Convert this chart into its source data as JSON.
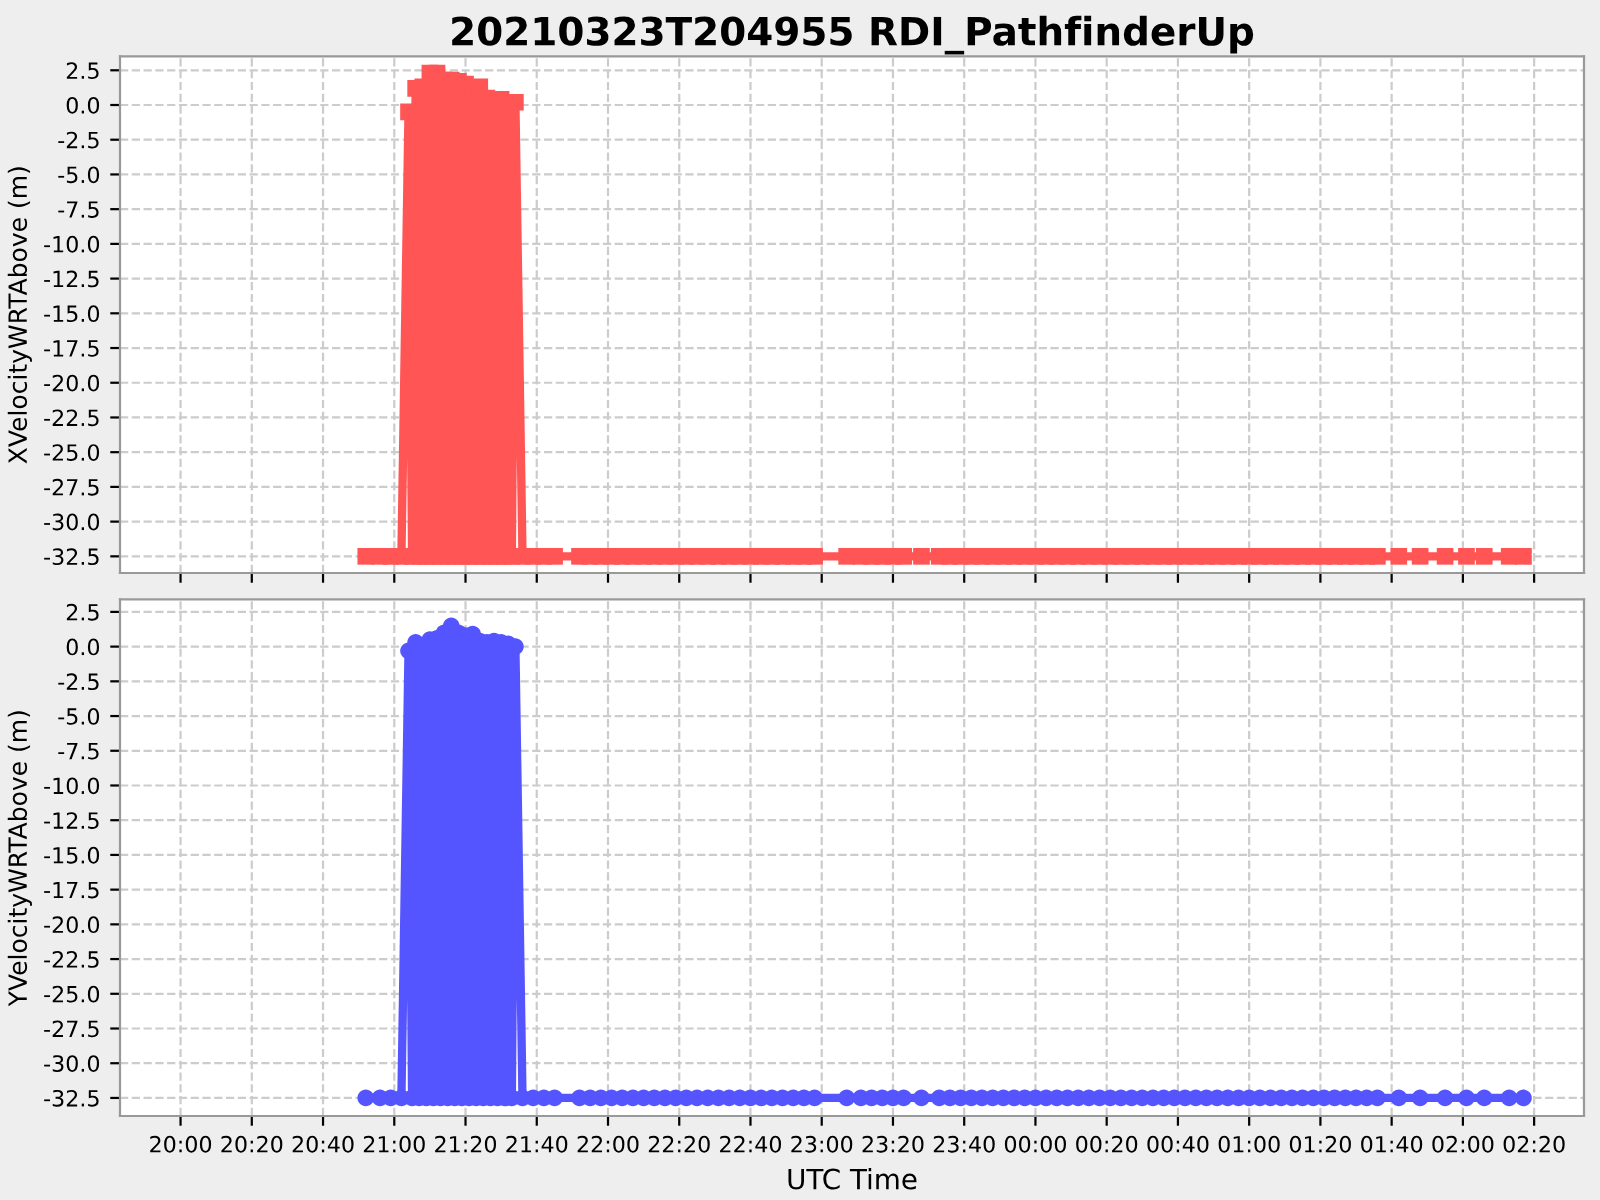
{
  "chart_data": [
    {
      "type": "line",
      "title": "20210323T204955 RDI_PathfinderUp",
      "ylabel": "XVelocityWRTAbove (m)",
      "tick_labels": "y",
      "grid": true,
      "marker": "square",
      "line_style": "solid",
      "xlim": [
        "2021-03-23T19:43",
        "2021-03-24T02:34"
      ],
      "ylim": [
        -33.7,
        3.5
      ],
      "xticks": [
        {
          "value": "2021-03-23T20:00",
          "label": null
        },
        {
          "value": "2021-03-23T20:20",
          "label": null
        },
        {
          "value": "2021-03-23T20:40",
          "label": null
        },
        {
          "value": "2021-03-23T21:00",
          "label": null
        },
        {
          "value": "2021-03-23T21:20",
          "label": null
        },
        {
          "value": "2021-03-23T21:40",
          "label": null
        },
        {
          "value": "2021-03-23T22:00",
          "label": null
        },
        {
          "value": "2021-03-23T22:20",
          "label": null
        },
        {
          "value": "2021-03-23T22:40",
          "label": null
        },
        {
          "value": "2021-03-23T23:00",
          "label": null
        },
        {
          "value": "2021-03-23T23:20",
          "label": null
        },
        {
          "value": "2021-03-23T23:40",
          "label": null
        },
        {
          "value": "2021-03-24T00:00",
          "label": null
        },
        {
          "value": "2021-03-24T00:20",
          "label": null
        },
        {
          "value": "2021-03-24T00:40",
          "label": null
        },
        {
          "value": "2021-03-24T01:00",
          "label": null
        },
        {
          "value": "2021-03-24T01:20",
          "label": null
        },
        {
          "value": "2021-03-24T01:40",
          "label": null
        },
        {
          "value": "2021-03-24T02:00",
          "label": null
        },
        {
          "value": "2021-03-24T02:20",
          "label": null
        }
      ],
      "yticks": [
        2.5,
        {
          "value": 0,
          "label": "0.0"
        },
        -2.5,
        {
          "value": -5,
          "label": "-5.0"
        },
        -7.5,
        {
          "value": -10,
          "label": "-10.0"
        },
        -12.5,
        {
          "value": -15,
          "label": "-15.0"
        },
        -17.5,
        {
          "value": -20,
          "label": "-20.0"
        },
        -22.5,
        {
          "value": -25,
          "label": "-25.0"
        },
        -27.5,
        {
          "value": -30,
          "label": "-30.0"
        },
        -32.5
      ],
      "x": [
        "2021-03-23T20:52",
        "2021-03-23T20:56",
        "2021-03-23T20:59",
        "2021-03-23T21:02",
        "2021-03-23T21:04",
        "2021-03-23T21:05",
        "2021-03-23T21:06",
        "2021-03-23T21:07",
        "2021-03-23T21:08",
        "2021-03-23T21:09",
        "2021-03-23T21:10",
        "2021-03-23T21:11",
        "2021-03-23T21:12",
        "2021-03-23T21:13",
        "2021-03-23T21:14",
        "2021-03-23T21:15",
        "2021-03-23T21:16",
        "2021-03-23T21:17",
        "2021-03-23T21:18",
        "2021-03-23T21:19",
        "2021-03-23T21:20",
        "2021-03-23T21:21",
        "2021-03-23T21:22",
        "2021-03-23T21:23",
        "2021-03-23T21:24",
        "2021-03-23T21:25",
        "2021-03-23T21:26",
        "2021-03-23T21:27",
        "2021-03-23T21:28",
        "2021-03-23T21:29",
        "2021-03-23T21:30",
        "2021-03-23T21:31",
        "2021-03-23T21:32",
        "2021-03-23T21:33",
        "2021-03-23T21:34",
        "2021-03-23T21:36",
        "2021-03-23T21:39",
        "2021-03-23T21:42",
        "2021-03-23T21:45",
        "2021-03-23T21:52",
        "2021-03-23T21:55",
        "2021-03-23T21:58",
        "2021-03-23T22:01",
        "2021-03-23T22:04",
        "2021-03-23T22:07",
        "2021-03-23T22:10",
        "2021-03-23T22:13",
        "2021-03-23T22:16",
        "2021-03-23T22:19",
        "2021-03-23T22:22",
        "2021-03-23T22:25",
        "2021-03-23T22:28",
        "2021-03-23T22:31",
        "2021-03-23T22:34",
        "2021-03-23T22:37",
        "2021-03-23T22:40",
        "2021-03-23T22:43",
        "2021-03-23T22:46",
        "2021-03-23T22:49",
        "2021-03-23T22:52",
        "2021-03-23T22:55",
        "2021-03-23T22:58",
        "2021-03-23T23:07",
        "2021-03-23T23:11",
        "2021-03-23T23:14",
        "2021-03-23T23:17",
        "2021-03-23T23:20",
        "2021-03-23T23:23",
        "2021-03-23T23:28",
        "2021-03-23T23:33",
        "2021-03-23T23:36",
        "2021-03-23T23:39",
        "2021-03-23T23:42",
        "2021-03-23T23:45",
        "2021-03-23T23:48",
        "2021-03-23T23:51",
        "2021-03-23T23:54",
        "2021-03-23T23:57",
        "2021-03-24T00:00",
        "2021-03-24T00:03",
        "2021-03-24T00:06",
        "2021-03-24T00:09",
        "2021-03-24T00:12",
        "2021-03-24T00:15",
        "2021-03-24T00:18",
        "2021-03-24T00:21",
        "2021-03-24T00:24",
        "2021-03-24T00:27",
        "2021-03-24T00:30",
        "2021-03-24T00:33",
        "2021-03-24T00:36",
        "2021-03-24T00:39",
        "2021-03-24T00:42",
        "2021-03-24T00:45",
        "2021-03-24T00:48",
        "2021-03-24T00:51",
        "2021-03-24T00:54",
        "2021-03-24T00:57",
        "2021-03-24T01:00",
        "2021-03-24T01:03",
        "2021-03-24T01:06",
        "2021-03-24T01:09",
        "2021-03-24T01:12",
        "2021-03-24T01:15",
        "2021-03-24T01:18",
        "2021-03-24T01:21",
        "2021-03-24T01:24",
        "2021-03-24T01:27",
        "2021-03-24T01:30",
        "2021-03-24T01:33",
        "2021-03-24T01:36",
        "2021-03-24T01:42",
        "2021-03-24T01:48",
        "2021-03-24T01:55",
        "2021-03-24T02:01",
        "2021-03-24T02:06",
        "2021-03-24T02:13",
        "2021-03-24T02:17"
      ],
      "series": [
        {
          "color": "#ff5555",
          "values": [
            -32.5,
            -32.5,
            -32.5,
            -32.5,
            -0.5,
            -32.5,
            1.2,
            -32.5,
            1.3,
            -32.5,
            2.3,
            -32.5,
            2.3,
            -32.5,
            1.8,
            -32.5,
            1.8,
            -32.5,
            1.7,
            -32.5,
            1.5,
            -32.5,
            0.8,
            -32.5,
            1.3,
            -32.5,
            0.5,
            -32.5,
            0.4,
            -32.5,
            0.4,
            -32.5,
            0.2,
            -32.5,
            0.2,
            -32.5,
            -32.5,
            -32.5,
            -32.5,
            -32.5,
            -32.5,
            -32.5,
            -32.5,
            -32.5,
            -32.5,
            -32.5,
            -32.5,
            -32.5,
            -32.5,
            -32.5,
            -32.5,
            -32.5,
            -32.5,
            -32.5,
            -32.5,
            -32.5,
            -32.5,
            -32.5,
            -32.5,
            -32.5,
            -32.5,
            -32.5,
            -32.5,
            -32.5,
            -32.5,
            -32.5,
            -32.5,
            -32.5,
            -32.5,
            -32.5,
            -32.5,
            -32.5,
            -32.5,
            -32.5,
            -32.5,
            -32.5,
            -32.5,
            -32.5,
            -32.5,
            -32.5,
            -32.5,
            -32.5,
            -32.5,
            -32.5,
            -32.5,
            -32.5,
            -32.5,
            -32.5,
            -32.5,
            -32.5,
            -32.5,
            -32.5,
            -32.5,
            -32.5,
            -32.5,
            -32.5,
            -32.5,
            -32.5,
            -32.5,
            -32.5,
            -32.5,
            -32.5,
            -32.5,
            -32.5,
            -32.5,
            -32.5,
            -32.5,
            -32.5,
            -32.5,
            -32.5,
            -32.5,
            -32.5,
            -32.5,
            -32.5,
            -32.5,
            -32.5,
            -32.5,
            -32.5
          ]
        }
      ]
    },
    {
      "type": "line",
      "xlabel": "UTC Time",
      "ylabel": "YVelocityWRTAbove (m)",
      "grid": true,
      "marker": "circle",
      "line_style": "solid",
      "xlim": [
        "2021-03-23T19:43",
        "2021-03-24T02:34"
      ],
      "ylim": [
        -33.8,
        3.4
      ],
      "xticks": [
        {
          "value": "2021-03-23T20:00",
          "label": "20:00"
        },
        {
          "value": "2021-03-23T20:20",
          "label": "20:20"
        },
        {
          "value": "2021-03-23T20:40",
          "label": "20:40"
        },
        {
          "value": "2021-03-23T21:00",
          "label": "21:00"
        },
        {
          "value": "2021-03-23T21:20",
          "label": "21:20"
        },
        {
          "value": "2021-03-23T21:40",
          "label": "21:40"
        },
        {
          "value": "2021-03-23T22:00",
          "label": "22:00"
        },
        {
          "value": "2021-03-23T22:20",
          "label": "22:20"
        },
        {
          "value": "2021-03-23T22:40",
          "label": "22:40"
        },
        {
          "value": "2021-03-23T23:00",
          "label": "23:00"
        },
        {
          "value": "2021-03-23T23:20",
          "label": "23:20"
        },
        {
          "value": "2021-03-23T23:40",
          "label": "23:40"
        },
        {
          "value": "2021-03-24T00:00",
          "label": "00:00"
        },
        {
          "value": "2021-03-24T00:20",
          "label": "00:20"
        },
        {
          "value": "2021-03-24T00:40",
          "label": "00:40"
        },
        {
          "value": "2021-03-24T01:00",
          "label": "01:00"
        },
        {
          "value": "2021-03-24T01:20",
          "label": "01:20"
        },
        {
          "value": "2021-03-24T01:40",
          "label": "01:40"
        },
        {
          "value": "2021-03-24T02:00",
          "label": "02:00"
        },
        {
          "value": "2021-03-24T02:20",
          "label": "02:20"
        }
      ],
      "yticks": [
        2.5,
        {
          "value": 0,
          "label": "0.0"
        },
        -2.5,
        {
          "value": -5,
          "label": "-5.0"
        },
        -7.5,
        {
          "value": -10,
          "label": "-10.0"
        },
        -12.5,
        {
          "value": -15,
          "label": "-15.0"
        },
        -17.5,
        {
          "value": -20,
          "label": "-20.0"
        },
        -22.5,
        {
          "value": -25,
          "label": "-25.0"
        },
        -27.5,
        {
          "value": -30,
          "label": "-30.0"
        },
        -32.5
      ],
      "x": [
        "2021-03-23T20:52",
        "2021-03-23T20:56",
        "2021-03-23T20:59",
        "2021-03-23T21:02",
        "2021-03-23T21:04",
        "2021-03-23T21:05",
        "2021-03-23T21:06",
        "2021-03-23T21:07",
        "2021-03-23T21:08",
        "2021-03-23T21:09",
        "2021-03-23T21:10",
        "2021-03-23T21:11",
        "2021-03-23T21:12",
        "2021-03-23T21:13",
        "2021-03-23T21:14",
        "2021-03-23T21:15",
        "2021-03-23T21:16",
        "2021-03-23T21:17",
        "2021-03-23T21:18",
        "2021-03-23T21:19",
        "2021-03-23T21:20",
        "2021-03-23T21:21",
        "2021-03-23T21:22",
        "2021-03-23T21:23",
        "2021-03-23T21:24",
        "2021-03-23T21:25",
        "2021-03-23T21:26",
        "2021-03-23T21:27",
        "2021-03-23T21:28",
        "2021-03-23T21:29",
        "2021-03-23T21:30",
        "2021-03-23T21:31",
        "2021-03-23T21:32",
        "2021-03-23T21:33",
        "2021-03-23T21:34",
        "2021-03-23T21:36",
        "2021-03-23T21:39",
        "2021-03-23T21:42",
        "2021-03-23T21:45",
        "2021-03-23T21:52",
        "2021-03-23T21:55",
        "2021-03-23T21:58",
        "2021-03-23T22:01",
        "2021-03-23T22:04",
        "2021-03-23T22:07",
        "2021-03-23T22:10",
        "2021-03-23T22:13",
        "2021-03-23T22:16",
        "2021-03-23T22:19",
        "2021-03-23T22:22",
        "2021-03-23T22:25",
        "2021-03-23T22:28",
        "2021-03-23T22:31",
        "2021-03-23T22:34",
        "2021-03-23T22:37",
        "2021-03-23T22:40",
        "2021-03-23T22:43",
        "2021-03-23T22:46",
        "2021-03-23T22:49",
        "2021-03-23T22:52",
        "2021-03-23T22:55",
        "2021-03-23T22:58",
        "2021-03-23T23:07",
        "2021-03-23T23:11",
        "2021-03-23T23:14",
        "2021-03-23T23:17",
        "2021-03-23T23:20",
        "2021-03-23T23:23",
        "2021-03-23T23:28",
        "2021-03-23T23:33",
        "2021-03-23T23:36",
        "2021-03-23T23:39",
        "2021-03-23T23:42",
        "2021-03-23T23:45",
        "2021-03-23T23:48",
        "2021-03-23T23:51",
        "2021-03-23T23:54",
        "2021-03-23T23:57",
        "2021-03-24T00:00",
        "2021-03-24T00:03",
        "2021-03-24T00:06",
        "2021-03-24T00:09",
        "2021-03-24T00:12",
        "2021-03-24T00:15",
        "2021-03-24T00:18",
        "2021-03-24T00:21",
        "2021-03-24T00:24",
        "2021-03-24T00:27",
        "2021-03-24T00:30",
        "2021-03-24T00:33",
        "2021-03-24T00:36",
        "2021-03-24T00:39",
        "2021-03-24T00:42",
        "2021-03-24T00:45",
        "2021-03-24T00:48",
        "2021-03-24T00:51",
        "2021-03-24T00:54",
        "2021-03-24T00:57",
        "2021-03-24T01:00",
        "2021-03-24T01:03",
        "2021-03-24T01:06",
        "2021-03-24T01:09",
        "2021-03-24T01:12",
        "2021-03-24T01:15",
        "2021-03-24T01:18",
        "2021-03-24T01:21",
        "2021-03-24T01:24",
        "2021-03-24T01:27",
        "2021-03-24T01:30",
        "2021-03-24T01:33",
        "2021-03-24T01:36",
        "2021-03-24T01:42",
        "2021-03-24T01:48",
        "2021-03-24T01:55",
        "2021-03-24T02:01",
        "2021-03-24T02:06",
        "2021-03-24T02:13",
        "2021-03-24T02:17"
      ],
      "series": [
        {
          "color": "#5555ff",
          "values": [
            -32.5,
            -32.5,
            -32.5,
            -32.5,
            -0.3,
            -32.5,
            0.3,
            -32.5,
            0.0,
            -32.5,
            0.5,
            -32.5,
            0.6,
            -32.5,
            1.0,
            -32.5,
            1.5,
            -32.5,
            1.0,
            -32.5,
            0.8,
            -32.5,
            0.9,
            -32.5,
            0.4,
            -32.5,
            0.3,
            -32.5,
            0.4,
            -32.5,
            0.3,
            -32.5,
            0.2,
            -32.5,
            0.0,
            -32.5,
            -32.5,
            -32.5,
            -32.5,
            -32.5,
            -32.5,
            -32.5,
            -32.5,
            -32.5,
            -32.5,
            -32.5,
            -32.5,
            -32.5,
            -32.5,
            -32.5,
            -32.5,
            -32.5,
            -32.5,
            -32.5,
            -32.5,
            -32.5,
            -32.5,
            -32.5,
            -32.5,
            -32.5,
            -32.5,
            -32.5,
            -32.5,
            -32.5,
            -32.5,
            -32.5,
            -32.5,
            -32.5,
            -32.5,
            -32.5,
            -32.5,
            -32.5,
            -32.5,
            -32.5,
            -32.5,
            -32.5,
            -32.5,
            -32.5,
            -32.5,
            -32.5,
            -32.5,
            -32.5,
            -32.5,
            -32.5,
            -32.5,
            -32.5,
            -32.5,
            -32.5,
            -32.5,
            -32.5,
            -32.5,
            -32.5,
            -32.5,
            -32.5,
            -32.5,
            -32.5,
            -32.5,
            -32.5,
            -32.5,
            -32.5,
            -32.5,
            -32.5,
            -32.5,
            -32.5,
            -32.5,
            -32.5,
            -32.5,
            -32.5,
            -32.5,
            -32.5,
            -32.5,
            -32.5,
            -32.5,
            -32.5,
            -32.5,
            -32.5,
            -32.5,
            -32.5
          ]
        }
      ]
    }
  ]
}
